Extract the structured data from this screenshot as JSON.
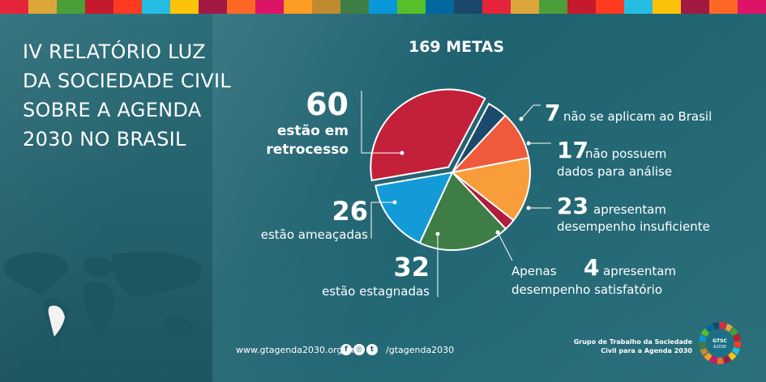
{
  "header": {
    "title_lines": [
      "IV RELATÓRIO LUZ",
      "DA SOCIEDADE CIVIL",
      "SOBRE A AGENDA",
      "2030 NO BRASIL"
    ]
  },
  "top_bar_colors": [
    "#e5243b",
    "#dda63a",
    "#4c9f38",
    "#c5192d",
    "#ff3a21",
    "#26bde2",
    "#fcc30b",
    "#a21942",
    "#fd6925",
    "#dd1367",
    "#fd9d24",
    "#bf8b2e",
    "#3f7e44",
    "#0a97d9",
    "#56c02b",
    "#00689d",
    "#19486a",
    "#e5243b",
    "#dda63a",
    "#4c9f38",
    "#c5192d",
    "#ff3a21",
    "#26bde2",
    "#fcc30b",
    "#a21942",
    "#fd6925",
    "#dd1367"
  ],
  "chart_data": {
    "type": "pie",
    "title": "169 METAS",
    "total": 169,
    "slices": [
      {
        "value": 7,
        "number": "7",
        "text": [
          "não se aplicam ao Brasil"
        ],
        "color": "#1b4a6b"
      },
      {
        "value": 17,
        "number": "17",
        "text": [
          "não possuem",
          "dados para análise"
        ],
        "color": "#f05a3c"
      },
      {
        "value": 23,
        "number": "23",
        "text": [
          "apresentam",
          "desempenho insuficiente"
        ],
        "color": "#f99d3a"
      },
      {
        "value": 4,
        "number": "4",
        "prefix": "Apenas",
        "text": [
          "apresentam",
          "desempenho satisfatório"
        ],
        "color": "#b01d3d"
      },
      {
        "value": 32,
        "number": "32",
        "text": [
          "estão estagnadas"
        ],
        "color": "#3e7d45"
      },
      {
        "value": 26,
        "number": "26",
        "text": [
          "estão ameaçadas"
        ],
        "color": "#129bd7"
      },
      {
        "value": 60,
        "number": "60",
        "text": [
          "estão em",
          "retrocesso"
        ],
        "color": "#c3203a"
      }
    ]
  },
  "footer": {
    "website": "www.gtagenda2030.org.br",
    "handle": "/gtagenda2030",
    "social_icons": [
      "facebook-icon",
      "instagram-icon",
      "twitter-icon"
    ],
    "org_lines": [
      "Grupo de Trabalho da Sociedade",
      "Civil para a Agenda 2030"
    ],
    "logo_text": [
      "GTSC",
      "A2030"
    ]
  }
}
